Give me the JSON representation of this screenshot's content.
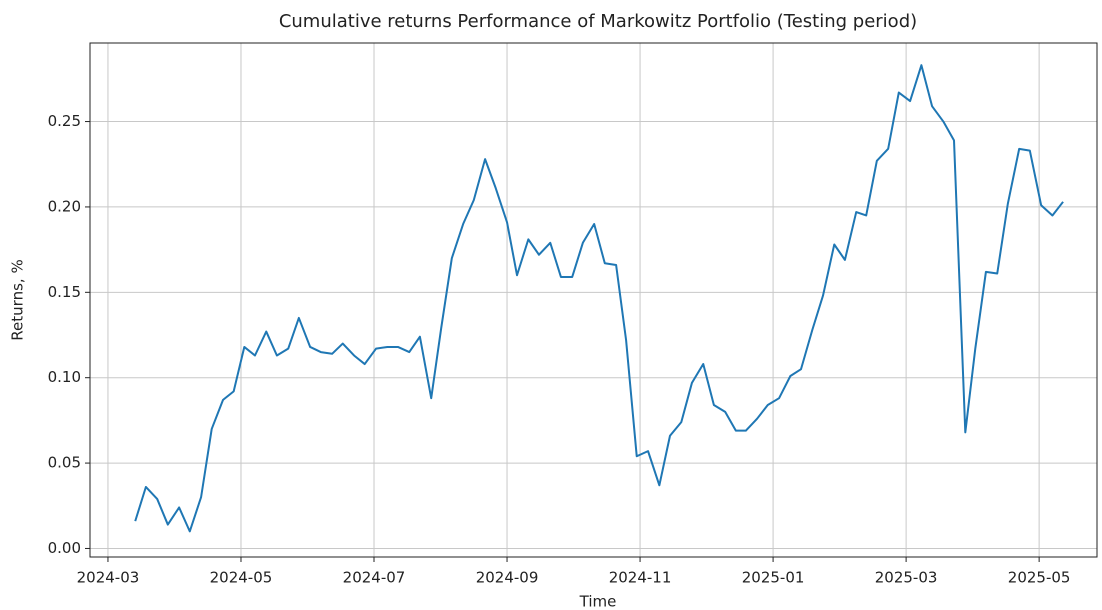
{
  "chart_data": {
    "type": "line",
    "title": "Cumulative returns Performance of Markowitz Portfolio (Testing period)",
    "xlabel": "Time",
    "ylabel": "Returns, %",
    "x": [
      0.41,
      0.57,
      0.74,
      0.9,
      1.07,
      1.23,
      1.4,
      1.56,
      1.73,
      1.89,
      2.05,
      2.21,
      2.38,
      2.54,
      2.71,
      2.87,
      3.04,
      3.2,
      3.37,
      3.53,
      3.7,
      3.86,
      4.03,
      4.2,
      4.36,
      4.53,
      4.69,
      4.86,
      5.01,
      5.17,
      5.34,
      5.5,
      5.67,
      5.83,
      6.0,
      6.15,
      6.32,
      6.48,
      6.65,
      6.81,
      6.98,
      7.14,
      7.31,
      7.47,
      7.64,
      7.79,
      7.95,
      8.12,
      8.29,
      8.45,
      8.62,
      8.78,
      8.95,
      9.11,
      9.28,
      9.44,
      9.59,
      9.76,
      9.92,
      10.09,
      10.26,
      10.42,
      10.59,
      10.75,
      10.92,
      11.08,
      11.25,
      11.4,
      11.56,
      11.73,
      11.89,
      12.06,
      12.23,
      12.39,
      12.56,
      12.72,
      12.89,
      13.04,
      13.2,
      13.37,
      13.53,
      13.7,
      13.86,
      14.03,
      14.2,
      14.36
    ],
    "series": [
      {
        "name": "Cumulative returns",
        "color": "#1f77b4",
        "values": [
          0.016,
          0.036,
          0.029,
          0.014,
          0.024,
          0.01,
          0.03,
          0.07,
          0.087,
          0.092,
          0.118,
          0.113,
          0.127,
          0.113,
          0.117,
          0.135,
          0.118,
          0.115,
          0.114,
          0.12,
          0.113,
          0.108,
          0.117,
          0.118,
          0.118,
          0.115,
          0.124,
          0.088,
          0.129,
          0.17,
          0.19,
          0.204,
          0.228,
          0.211,
          0.191,
          0.16,
          0.181,
          0.172,
          0.179,
          0.159,
          0.159,
          0.179,
          0.19,
          0.167,
          0.166,
          0.122,
          0.054,
          0.057,
          0.037,
          0.066,
          0.074,
          0.097,
          0.108,
          0.084,
          0.08,
          0.069,
          0.069,
          0.076,
          0.084,
          0.088,
          0.101,
          0.105,
          0.128,
          0.148,
          0.178,
          0.169,
          0.197,
          0.195,
          0.227,
          0.234,
          0.267,
          0.262,
          0.283,
          0.259,
          0.25,
          0.239,
          0.068,
          0.117,
          0.162,
          0.161,
          0.202,
          0.234,
          0.233,
          0.201,
          0.195,
          0.203
        ]
      }
    ],
    "xlim": [
      -0.27,
      14.87
    ],
    "xticks": [
      {
        "value": 0,
        "label": "2024-03"
      },
      {
        "value": 2,
        "label": "2024-05"
      },
      {
        "value": 4,
        "label": "2024-07"
      },
      {
        "value": 6,
        "label": "2024-09"
      },
      {
        "value": 8,
        "label": "2024-11"
      },
      {
        "value": 10,
        "label": "2025-01"
      },
      {
        "value": 12,
        "label": "2025-03"
      },
      {
        "value": 14,
        "label": "2025-05"
      }
    ],
    "ylim": [
      -0.005,
      0.296
    ],
    "yticks": [
      {
        "value": 0,
        "label": "0.00"
      },
      0.05,
      {
        "value": 0.1,
        "label": "0.10"
      },
      0.15,
      {
        "value": 0.2,
        "label": "0.20"
      },
      0.25
    ],
    "grid": true
  }
}
